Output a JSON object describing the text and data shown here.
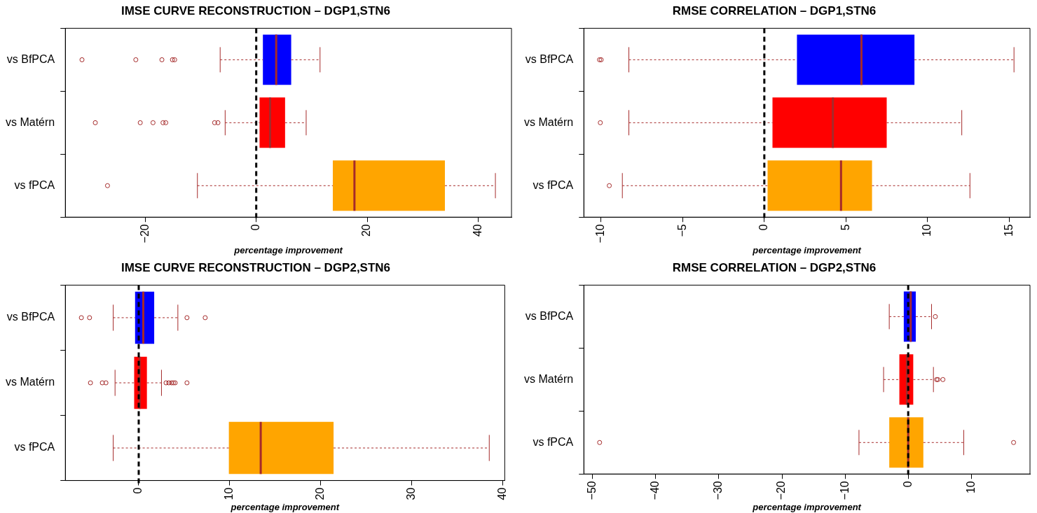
{
  "chart_data": [
    {
      "type": "box",
      "orientation": "horizontal",
      "title": "IMSE CURVE RECONSTRUCTION – DGP1,STN6",
      "xlabel": "percentage improvement",
      "categories": [
        "vs BfPCA",
        "vs Matérn",
        "vs fPCA"
      ],
      "colors": [
        "#0000ff",
        "#ff0000",
        "#ffa500"
      ],
      "boxes": [
        {
          "low": -6.5,
          "q1": 1.2,
          "median": 3.6,
          "q3": 6.3,
          "high": 11.5,
          "outliers": [
            -31.4,
            -21.7,
            -17.0,
            -15.1,
            -14.7
          ]
        },
        {
          "low": -5.6,
          "q1": 0.6,
          "median": 2.5,
          "q3": 5.2,
          "high": 9.0,
          "outliers": [
            -29.0,
            -20.9,
            -18.6,
            -16.8,
            -16.3,
            -7.5,
            -6.9
          ]
        },
        {
          "low": -10.6,
          "q1": 13.8,
          "median": 17.7,
          "q3": 34.0,
          "high": 43.1,
          "outliers": [
            -26.8
          ]
        }
      ],
      "xlim": [
        -34.4,
        46
      ],
      "xticks": [
        -20,
        0,
        20,
        40
      ],
      "grid": false,
      "ref_lines": [
        {
          "axis": "x",
          "value": 0,
          "color": "#000000",
          "line_style": "dashed"
        }
      ]
    },
    {
      "type": "box",
      "orientation": "horizontal",
      "title": "RMSE CORRELATION – DGP1,STN6",
      "xlabel": "percentage improvement",
      "categories": [
        "vs BfPCA",
        "vs Matérn",
        "vs fPCA"
      ],
      "colors": [
        "#0000ff",
        "#ff0000",
        "#ffa500"
      ],
      "boxes": [
        {
          "low": -8.3,
          "q1": 2.0,
          "median": 5.95,
          "q3": 9.2,
          "high": 15.3,
          "outliers": [
            -10.1,
            -10.0
          ]
        },
        {
          "low": -8.3,
          "q1": 0.5,
          "median": 4.2,
          "q3": 7.5,
          "high": 12.1,
          "outliers": [
            -10.05
          ]
        },
        {
          "low": -8.7,
          "q1": 0.2,
          "median": 4.7,
          "q3": 6.6,
          "high": 12.6,
          "outliers": [
            -9.5
          ]
        }
      ],
      "xlim": [
        -11.06,
        16.28
      ],
      "xticks": [
        -10,
        -5,
        0,
        5,
        10,
        15
      ],
      "grid": false,
      "ref_lines": [
        {
          "axis": "x",
          "value": 0,
          "color": "#000000",
          "line_style": "dashed"
        }
      ]
    },
    {
      "type": "box",
      "orientation": "horizontal",
      "title": "IMSE CURVE RECONSTRUCTION – DGP2,STN6",
      "xlabel": "percentage improvement",
      "categories": [
        "vs BfPCA",
        "vs Matérn",
        "vs fPCA"
      ],
      "colors": [
        "#0000ff",
        "#ff0000",
        "#ffa500"
      ],
      "boxes": [
        {
          "low": -2.8,
          "q1": -0.4,
          "median": 0.5,
          "q3": 1.7,
          "high": 4.3,
          "outliers": [
            -6.3,
            -5.4,
            5.3,
            7.3
          ]
        },
        {
          "low": -2.6,
          "q1": -0.5,
          "median": 0.1,
          "q3": 0.9,
          "high": 2.5,
          "outliers": [
            -5.3,
            -4.0,
            -3.6,
            3.0,
            3.3,
            3.6,
            3.8,
            4.0,
            5.3
          ]
        },
        {
          "low": -2.8,
          "q1": 9.9,
          "median": 13.4,
          "q3": 21.4,
          "high": 38.5
        }
      ],
      "xlim": [
        -8.06,
        40.2
      ],
      "xticks": [
        0,
        10,
        20,
        30,
        40
      ],
      "grid": false,
      "ref_lines": [
        {
          "axis": "x",
          "value": 0,
          "color": "#000000",
          "line_style": "dashed"
        }
      ]
    },
    {
      "type": "box",
      "orientation": "horizontal",
      "title": "RMSE CORRELATION – DGP2,STN6",
      "xlabel": "percentage improvement",
      "categories": [
        "vs BfPCA",
        "vs Matérn",
        "vs fPCA"
      ],
      "colors": [
        "#0000ff",
        "#ff0000",
        "#ffa500"
      ],
      "boxes": [
        {
          "low": -3.0,
          "q1": -0.7,
          "median": 0.4,
          "q3": 1.2,
          "high": 3.7,
          "outliers": [
            4.3
          ]
        },
        {
          "low": -3.9,
          "q1": -1.4,
          "median": -0.2,
          "q3": 0.8,
          "high": 4.0,
          "outliers": [
            4.5,
            4.7,
            5.5
          ]
        },
        {
          "low": -7.8,
          "q1": -3.0,
          "median": 0.0,
          "q3": 2.4,
          "high": 8.8,
          "outliers": [
            -48.9,
            16.7
          ]
        }
      ],
      "xlim": [
        -51.4,
        19.3
      ],
      "xticks": [
        -50,
        -40,
        -30,
        -20,
        -10,
        0,
        10
      ],
      "grid": false,
      "ref_lines": [
        {
          "axis": "x",
          "value": 0,
          "color": "#000000",
          "line_style": "dashed"
        }
      ]
    }
  ]
}
